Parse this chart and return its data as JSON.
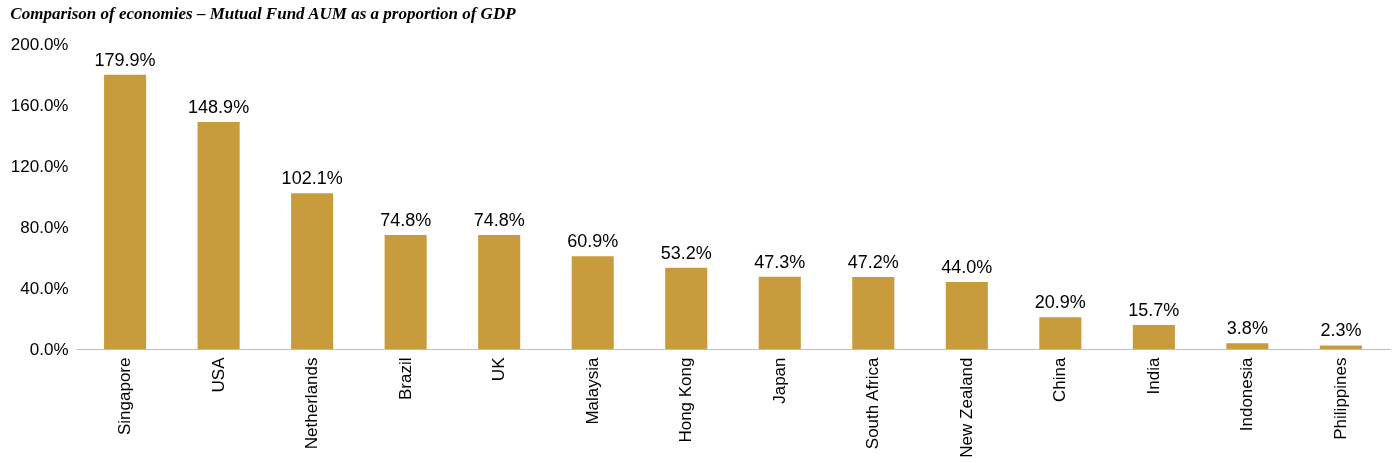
{
  "chart_data": {
    "type": "bar",
    "title": "Comparison of economies – Mutual Fund AUM as a proportion of GDP",
    "categories": [
      "Singapore",
      "USA",
      "Netherlands",
      "Brazil",
      "UK",
      "Malaysia",
      "Hong Kong",
      "Japan",
      "South Africa",
      "New Zealand",
      "China",
      "India",
      "Indonesia",
      "Philippines"
    ],
    "values": [
      179.9,
      148.9,
      102.1,
      74.8,
      74.8,
      60.9,
      53.2,
      47.3,
      47.2,
      44.0,
      20.9,
      15.7,
      3.8,
      2.3
    ],
    "value_labels": [
      "179.9%",
      "148.9%",
      "102.1%",
      "74.8%",
      "74.8%",
      "60.9%",
      "53.2%",
      "47.3%",
      "47.2%",
      "44.0%",
      "20.9%",
      "15.7%",
      "3.8%",
      "2.3%"
    ],
    "color": "#c89b3c",
    "ylim": [
      0,
      200
    ],
    "yticks": [
      {
        "value": 0,
        "label": "0.0%"
      },
      {
        "value": 40,
        "label": "40.0%"
      },
      {
        "value": 80,
        "label": "80.0%"
      },
      {
        "value": 120,
        "label": "120.0%"
      },
      {
        "value": 160,
        "label": "160.0%"
      },
      {
        "value": 200,
        "label": "200.0%"
      }
    ],
    "grid": false
  }
}
